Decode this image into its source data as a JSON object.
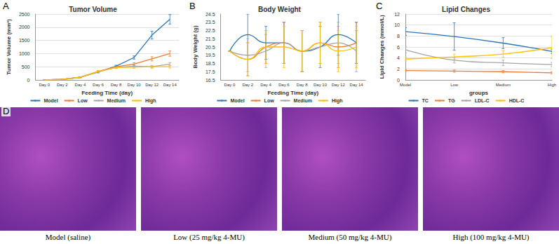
{
  "chart_data": [
    {
      "type": "line",
      "panel_label": "A",
      "title": "Tumor Volume",
      "x_label": "Feeding Time (day)",
      "y_label": "Tumor Volume (mm³)",
      "categories": [
        "Day 0",
        "Day 2",
        "Day 4",
        "Day 6",
        "Day 8",
        "Day 10",
        "Day 12",
        "Day 14"
      ],
      "series": [
        {
          "name": "Model",
          "color": "#2e75b6",
          "values": [
            0,
            20,
            100,
            300,
            520,
            850,
            1700,
            2300
          ],
          "errors": [
            0,
            5,
            15,
            30,
            40,
            60,
            150,
            180
          ]
        },
        {
          "name": "Low",
          "color": "#ed7d31",
          "values": [
            0,
            20,
            100,
            320,
            500,
            600,
            800,
            1000
          ],
          "errors": [
            0,
            5,
            15,
            30,
            40,
            50,
            80,
            100
          ]
        },
        {
          "name": "Medium",
          "color": "#a5a5a5",
          "values": [
            0,
            20,
            100,
            300,
            480,
            520,
            500,
            600
          ],
          "errors": [
            0,
            5,
            15,
            30,
            40,
            40,
            50,
            60
          ]
        },
        {
          "name": "High",
          "color": "#ffc000",
          "values": [
            0,
            20,
            100,
            320,
            470,
            480,
            500,
            500
          ],
          "errors": [
            0,
            5,
            15,
            30,
            40,
            40,
            40,
            50
          ]
        }
      ],
      "ylim": [
        0,
        2500
      ],
      "yticks": [
        0,
        500,
        1000,
        1500,
        2000,
        2500
      ],
      "grid": true,
      "legend": "bottom",
      "marker": "none",
      "line_style": "solid"
    },
    {
      "type": "line",
      "panel_label": "B",
      "title": "Body Weight",
      "x_label": "Feeding Time (day)",
      "y_label": "Body Weight (g)",
      "categories": [
        "Day 0",
        "Day 2",
        "Day 4",
        "Day 6",
        "Day 8",
        "Day 10",
        "Day 12",
        "Day 14"
      ],
      "series": [
        {
          "name": "Model",
          "color": "#2e75b6",
          "values": [
            20,
            22,
            21,
            21,
            20,
            20.5,
            22,
            21
          ],
          "errors": [
            0,
            2.5,
            2,
            2.5,
            2.5,
            2.5,
            2.5,
            2.5
          ]
        },
        {
          "name": "Low",
          "color": "#ed7d31",
          "values": [
            20,
            19,
            20.5,
            21,
            20,
            21,
            20.5,
            21
          ],
          "errors": [
            0,
            2,
            2,
            2.5,
            2.5,
            2.5,
            2.5,
            2.5
          ]
        },
        {
          "name": "Medium",
          "color": "#a5a5a5",
          "values": [
            20,
            19.5,
            20,
            21,
            20,
            20.5,
            21,
            20
          ],
          "errors": [
            0,
            2,
            2,
            2.5,
            2.5,
            2.5,
            2.5,
            2.5
          ]
        },
        {
          "name": "High",
          "color": "#ffc000",
          "values": [
            20,
            19,
            20.5,
            20.5,
            20,
            21,
            20,
            20.5
          ],
          "errors": [
            0,
            2,
            2,
            2.5,
            2.5,
            2.5,
            2.5,
            2.5
          ]
        }
      ],
      "ylim": [
        16.5,
        24.5
      ],
      "yticks": [
        16.5,
        17.5,
        18.5,
        19.5,
        20.5,
        21.5,
        22.5,
        23.5,
        24.5
      ],
      "grid": false,
      "legend": "bottom",
      "marker": "none",
      "line_style": "smooth"
    },
    {
      "type": "line",
      "panel_label": "C",
      "title": "Lipid Changes",
      "x_label": "groups",
      "y_label": "Lipid Changes (mmol/L)",
      "categories": [
        "Model",
        "Low",
        "Medium",
        "High"
      ],
      "series": [
        {
          "name": "TC",
          "color": "#2e75b6",
          "values": [
            8.8,
            7.9,
            6.7,
            5.2
          ],
          "errors": [
            0.7,
            2.5,
            1.0,
            0.4
          ]
        },
        {
          "name": "TG",
          "color": "#ed7d31",
          "values": [
            1.7,
            1.6,
            1.5,
            1.3
          ],
          "errors": [
            0.2,
            0.2,
            0.2,
            0.2
          ]
        },
        {
          "name": "LDL-C",
          "color": "#a5a5a5",
          "values": [
            5.5,
            3.6,
            3.1,
            2.8
          ],
          "errors": [
            0.6,
            0.5,
            0.5,
            0.4
          ]
        },
        {
          "name": "HDL-C",
          "color": "#ffc000",
          "values": [
            3.8,
            4.2,
            4.7,
            5.9
          ],
          "errors": [
            0.4,
            0.5,
            0.6,
            2.0
          ]
        }
      ],
      "ylim": [
        0,
        12
      ],
      "yticks": [
        0,
        2,
        4,
        6,
        8,
        10,
        12
      ],
      "grid": true,
      "legend": "bottom",
      "marker": "none",
      "line_style": "smooth"
    }
  ],
  "panel_d": {
    "panel_label": "D",
    "captions": [
      "Model (saline)",
      "Low (25 mg/kg 4-MU)",
      "Medium (50 mg/kg 4-MU)",
      "High (100 mg/kg 4-MU)"
    ]
  }
}
